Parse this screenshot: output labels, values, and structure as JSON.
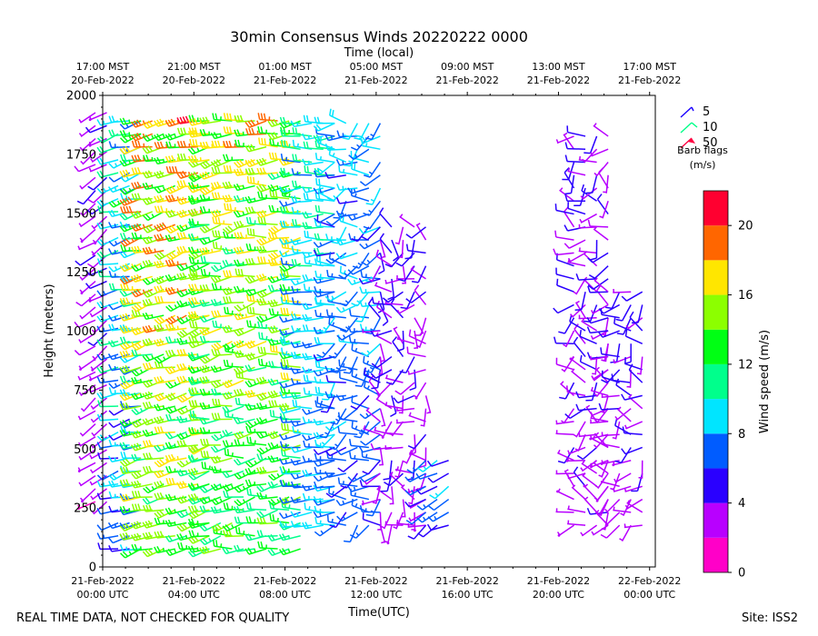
{
  "chart_data": {
    "type": "scatter",
    "subtype": "wind-barbs",
    "title": "30min Consensus Winds 20220222 0000",
    "top_axis_label": "Time (local)",
    "xlabel": "Time(UTC)",
    "ylabel": "Height (meters)",
    "xlim_hours": [
      0,
      24.25
    ],
    "ylim": [
      0,
      2000
    ],
    "y_ticks": [
      0,
      250,
      500,
      750,
      1000,
      1250,
      1500,
      1750,
      2000
    ],
    "x_ticks": [
      {
        "h": 0,
        "line1": "21-Feb-2022",
        "line2": "00:00 UTC"
      },
      {
        "h": 4,
        "line1": "21-Feb-2022",
        "line2": "04:00 UTC"
      },
      {
        "h": 8,
        "line1": "21-Feb-2022",
        "line2": "08:00 UTC"
      },
      {
        "h": 12,
        "line1": "21-Feb-2022",
        "line2": "12:00 UTC"
      },
      {
        "h": 16,
        "line1": "21-Feb-2022",
        "line2": "16:00 UTC"
      },
      {
        "h": 20,
        "line1": "21-Feb-2022",
        "line2": "20:00 UTC"
      },
      {
        "h": 24,
        "line1": "22-Feb-2022",
        "line2": "00:00 UTC"
      }
    ],
    "top_ticks": [
      {
        "h": 0,
        "line1": "17:00 MST",
        "line2": "20-Feb-2022"
      },
      {
        "h": 4,
        "line1": "21:00 MST",
        "line2": "20-Feb-2022"
      },
      {
        "h": 8,
        "line1": "01:00 MST",
        "line2": "21-Feb-2022"
      },
      {
        "h": 12,
        "line1": "05:00 MST",
        "line2": "21-Feb-2022"
      },
      {
        "h": 16,
        "line1": "09:00 MST",
        "line2": "21-Feb-2022"
      },
      {
        "h": 20,
        "line1": "13:00 MST",
        "line2": "21-Feb-2022"
      },
      {
        "h": 24,
        "line1": "17:00 MST",
        "line2": "21-Feb-2022"
      }
    ],
    "barb_legend": {
      "title_line1": "Barb flags",
      "title_line2": "(m/s)",
      "entries": [
        {
          "label": "5",
          "color": "#1a00ff"
        },
        {
          "label": "10",
          "color": "#00ff88"
        },
        {
          "label": "50",
          "color": "#ff0040"
        }
      ]
    },
    "colorbar": {
      "label": "Wind speed (m/s)",
      "min": 0,
      "max": 22,
      "ticks": [
        0,
        4,
        8,
        12,
        16,
        20
      ],
      "bins": [
        {
          "from": 0,
          "to": 2,
          "color": "#ff00c8"
        },
        {
          "from": 2,
          "to": 4,
          "color": "#b800ff"
        },
        {
          "from": 4,
          "to": 6,
          "color": "#2a00ff"
        },
        {
          "from": 6,
          "to": 8,
          "color": "#005cff"
        },
        {
          "from": 8,
          "to": 10,
          "color": "#00e5ff"
        },
        {
          "from": 10,
          "to": 12,
          "color": "#00ff8c"
        },
        {
          "from": 12,
          "to": 14,
          "color": "#00ff14"
        },
        {
          "from": 14,
          "to": 16,
          "color": "#8cff00"
        },
        {
          "from": 16,
          "to": 18,
          "color": "#ffe600"
        },
        {
          "from": 18,
          "to": 20,
          "color": "#ff6600"
        },
        {
          "from": 20,
          "to": 22,
          "color": "#ff0030"
        }
      ]
    },
    "barb_regions": [
      {
        "t0": 0,
        "t1": 0.5,
        "h0": 300,
        "h1": 1950,
        "spd0": 1,
        "spd1": 5,
        "dir0": 220,
        "dir1": 250
      },
      {
        "t0": 1,
        "t1": 2,
        "h0": 100,
        "h1": 1950,
        "spd0": 3,
        "spd1": 13,
        "dir0": 240,
        "dir1": 270
      },
      {
        "t0": 2,
        "t1": 5,
        "h0": 100,
        "h1": 1950,
        "spd0": 8,
        "spd1": 21,
        "dir0": 240,
        "dir1": 270
      },
      {
        "t0": 5,
        "t1": 9,
        "h0": 100,
        "h1": 1950,
        "spd0": 8,
        "spd1": 19,
        "dir0": 240,
        "dir1": 280
      },
      {
        "t0": 9,
        "t1": 10.5,
        "h0": 200,
        "h1": 1950,
        "spd0": 5,
        "spd1": 12,
        "dir0": 250,
        "dir1": 280
      },
      {
        "t0": 10.5,
        "t1": 12.5,
        "h0": 200,
        "h1": 1950,
        "spd0": 4,
        "spd1": 10,
        "dir0": 200,
        "dir1": 300
      },
      {
        "t0": 12.5,
        "t1": 14.5,
        "h0": 200,
        "h1": 1500,
        "spd0": 1,
        "spd1": 6,
        "dir0": 150,
        "dir1": 330
      },
      {
        "t0": 14.5,
        "t1": 15.5,
        "h0": 200,
        "h1": 480,
        "spd0": 4,
        "spd1": 9,
        "dir0": 220,
        "dir1": 260
      },
      {
        "t0": 21,
        "t1": 22.5,
        "h0": 200,
        "h1": 1900,
        "spd0": 1,
        "spd1": 6,
        "dir0": 180,
        "dir1": 330
      },
      {
        "t0": 22.5,
        "t1": 24.2,
        "h0": 200,
        "h1": 1200,
        "spd0": 1,
        "spd1": 6,
        "dir0": 180,
        "dir1": 320
      }
    ]
  },
  "footer": {
    "left": "REAL TIME DATA, NOT CHECKED FOR QUALITY",
    "right": "Site: ISS2"
  }
}
